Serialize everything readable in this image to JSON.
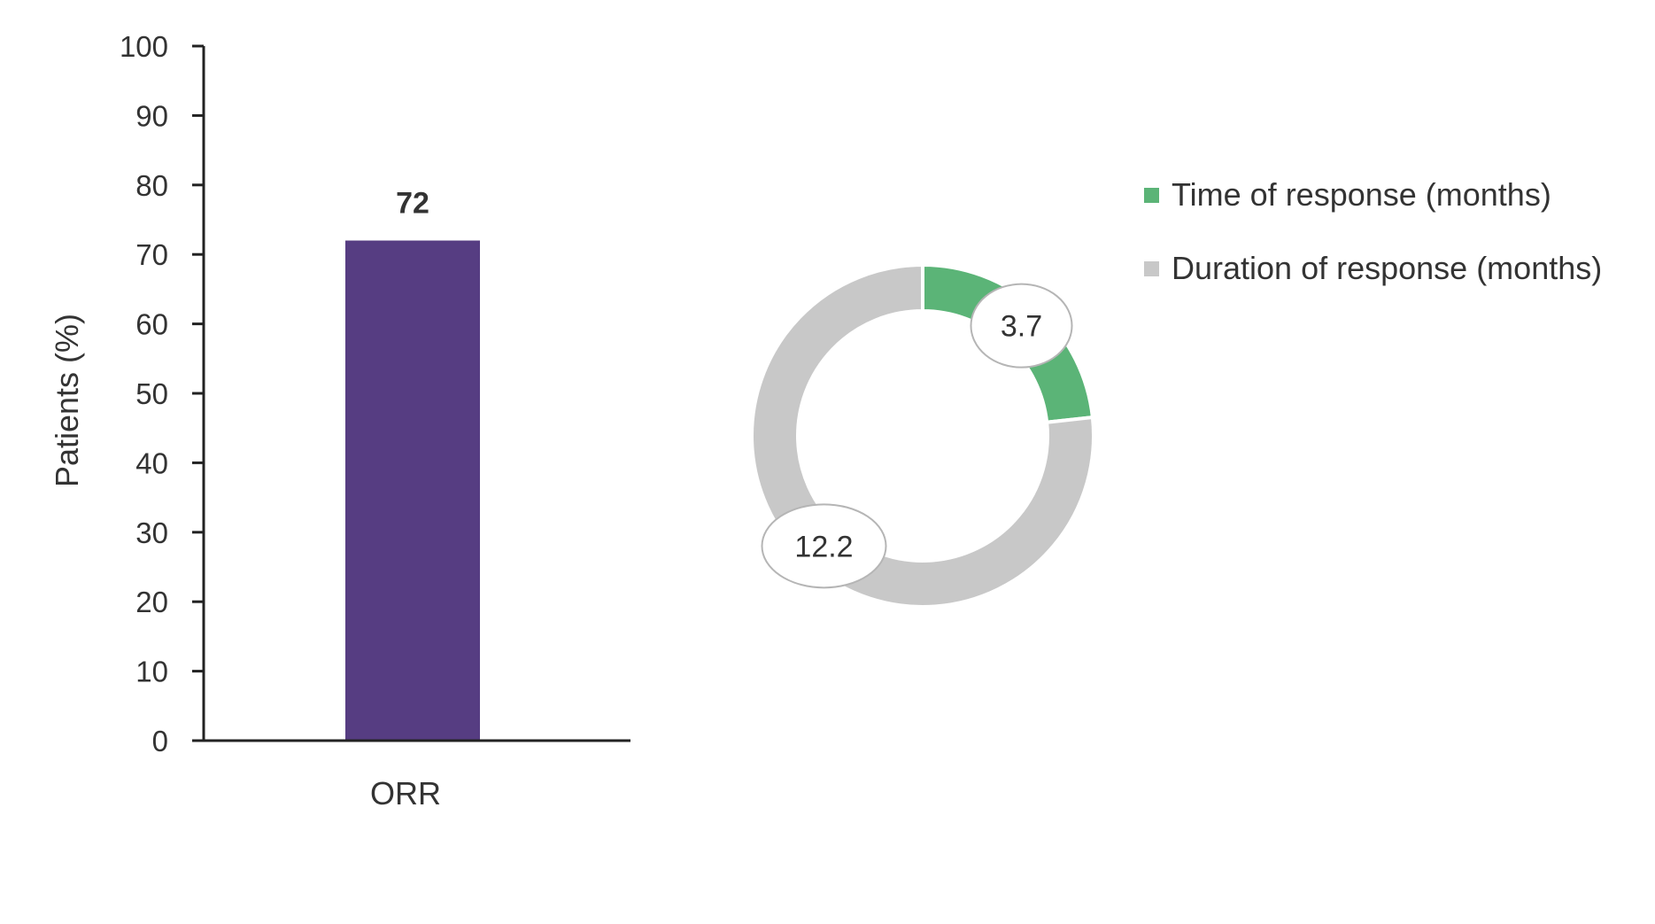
{
  "chart_data": [
    {
      "type": "bar",
      "categories": [
        "ORR"
      ],
      "values": [
        72
      ],
      "data_labels": [
        "72"
      ],
      "title": "",
      "xlabel": "",
      "ylabel": "Patients (%)",
      "ylim": [
        0,
        100
      ],
      "yticks": [
        0,
        10,
        20,
        30,
        40,
        50,
        60,
        70,
        80,
        90,
        100
      ],
      "grid": false,
      "colors": {
        "bar": "#563d82",
        "axis": "#222222"
      }
    },
    {
      "type": "pie",
      "style": "donut",
      "slices": [
        {
          "name": "Time of response (months)",
          "value": 3.7,
          "label": "3.7",
          "color": "#5bb477"
        },
        {
          "name": "Duration of response (months)",
          "value": 12.2,
          "label": "12.2",
          "color": "#c8c8c8"
        }
      ],
      "legend_placement": "right",
      "grid": false
    }
  ]
}
